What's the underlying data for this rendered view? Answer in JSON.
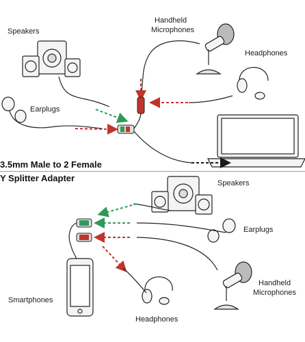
{
  "top": {
    "speakers": "Speakers",
    "earplugs": "Earplugs",
    "handheld_line1": "Handheld",
    "handheld_line2": "Microphones",
    "headphones": "Headphones"
  },
  "title": {
    "line1": "3.5mm Male to 2 Female",
    "line2": "Y Splitter Adapter"
  },
  "bottom": {
    "speakers": "Speakers",
    "earplugs": "Earplugs",
    "smartphones": "Smartphones",
    "headphones": "Headphones",
    "handheld_line1": "Handheld",
    "handheld_line2": "Microphones"
  },
  "colors": {
    "green": "#2e9a5a",
    "red": "#c0352b",
    "ink": "#1a1a1a"
  }
}
